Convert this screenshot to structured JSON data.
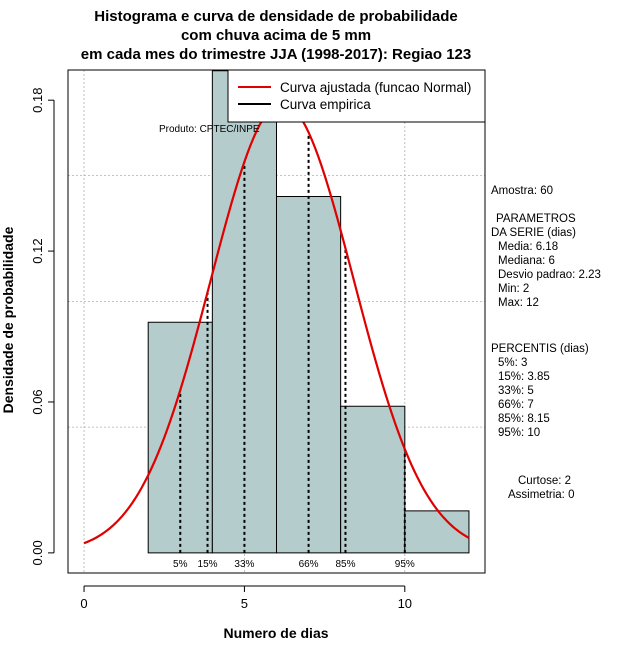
{
  "chart_data": {
    "type": "bar",
    "title_lines": [
      "Histograma e curva de densidade de probabilidade",
      "com chuva acima de 5 mm",
      "em cada mes do trimestre JJA (1998-2017): Regiao 123"
    ],
    "xlabel": "Numero de dias",
    "ylabel": "Densidade de probabilidade",
    "xlim": [
      -0.5,
      12.5
    ],
    "ylim": [
      -0.008,
      0.192
    ],
    "xticks": [
      0,
      5,
      10
    ],
    "xtick_labels": [
      "0",
      "5",
      "10"
    ],
    "yticks": [
      0.0,
      0.06,
      0.12,
      0.18
    ],
    "ytick_labels": [
      "0.00",
      "0.06",
      "0.12",
      "0.18"
    ],
    "grid": true,
    "gridlines_y": [
      0.05,
      0.1,
      0.15,
      0.2
    ],
    "gridlines_x": [
      0,
      5,
      10
    ],
    "bins": [
      {
        "start": 2,
        "end": 4,
        "density": 0.0917
      },
      {
        "start": 4,
        "end": 6,
        "density": 0.1917
      },
      {
        "start": 6,
        "end": 8,
        "density": 0.1417
      },
      {
        "start": 8,
        "end": 10,
        "density": 0.0583
      },
      {
        "start": 10,
        "end": 12,
        "density": 0.0167
      }
    ],
    "fitted_curve": {
      "name": "Curva ajustada (funcao Normal)",
      "mean": 6.18,
      "sd": 2.23,
      "x_from": 0,
      "x_to": 12,
      "color": "#e00000"
    },
    "percentile_lines": [
      {
        "label": "5%",
        "x": 3
      },
      {
        "label": "15%",
        "x": 3.85
      },
      {
        "label": "33%",
        "x": 5
      },
      {
        "label": "66%",
        "x": 7
      },
      {
        "label": "85%",
        "x": 8.15
      },
      {
        "label": "95%",
        "x": 10
      }
    ],
    "legend": {
      "position": "top-right",
      "entries": [
        {
          "label": "Curva ajustada (funcao Normal)",
          "color": "#e00000"
        },
        {
          "label": "Curva empirica",
          "color": "#000000"
        }
      ]
    },
    "annotation": "Produto: CPTEC/INPE",
    "colors": {
      "bar_fill": "#b4cccc",
      "bar_stroke": "#000000",
      "curve": "#e00000",
      "grid": "#b0b0b0"
    }
  },
  "stats_panel": {
    "sample": "Amostra: 60",
    "params_title_1": "PARAMETROS",
    "params_title_2": "DA SERIE (dias)",
    "media": "Media: 6.18",
    "mediana": "Mediana: 6",
    "desvio": "Desvio padrao: 2.23",
    "min": "Min: 2",
    "max": "Max: 12",
    "percentis_title": "PERCENTIS (dias)",
    "p5": "5%: 3",
    "p15": "15%: 3.85",
    "p33": "33%: 5",
    "p66": "66%: 7",
    "p85": "85%: 8.15",
    "p95": "95%: 10",
    "curtose": "Curtose: 2",
    "assimetria": "Assimetria: 0"
  }
}
